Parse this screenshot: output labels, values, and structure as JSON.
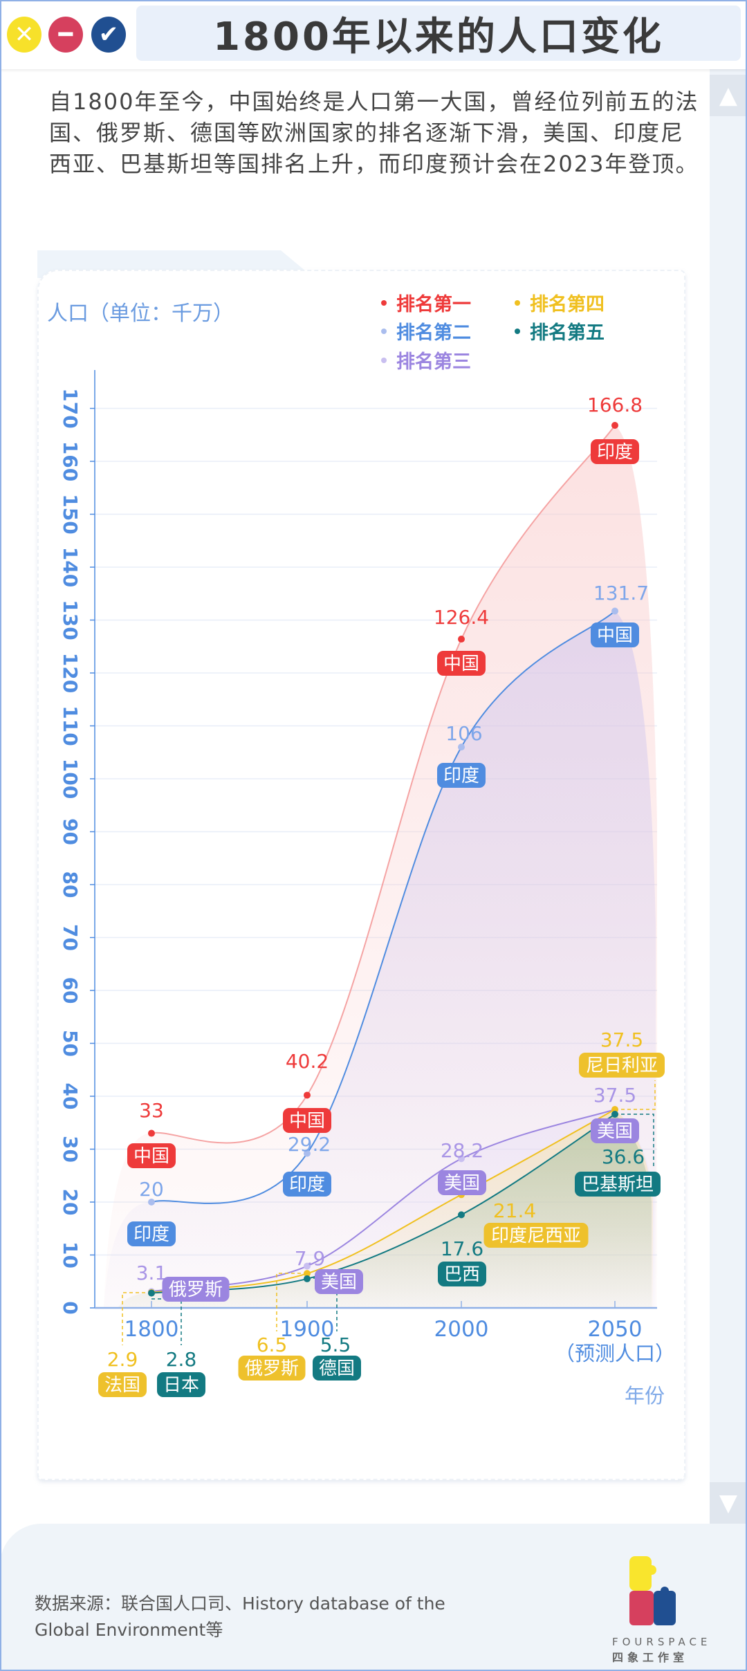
{
  "header": {
    "title": "1800年以来的人口变化",
    "buttons": [
      {
        "name": "close",
        "icon": "x-icon",
        "color": "#f7e12a"
      },
      {
        "name": "minimize",
        "icon": "minus-icon",
        "color": "#d6405e"
      },
      {
        "name": "confirm",
        "icon": "check-icon",
        "color": "#204f91"
      }
    ]
  },
  "description": "自1800年至今，中国始终是人口第一大国，曾经位列前五的法国、俄罗斯、德国等欧洲国家的排名逐渐下滑，美国、印度尼西亚、巴基斯坦等国排名上升，而印度预计会在2023年登顶。",
  "scroll": {
    "up_icon": "chevron-up-icon",
    "down_icon": "chevron-down-icon"
  },
  "chart_data": {
    "type": "line",
    "ylabel": "人口（单位：千万）",
    "xlabel": "年份",
    "categories": [
      "1800",
      "1900",
      "2000",
      "2050"
    ],
    "category_notes": [
      "",
      "",
      "",
      "（预测人口）"
    ],
    "ylim": [
      0,
      170
    ],
    "yticks": [
      0,
      10,
      20,
      30,
      40,
      50,
      60,
      70,
      80,
      90,
      100,
      110,
      120,
      130,
      140,
      150,
      160,
      170
    ],
    "grid": true,
    "legend_position": "top-right",
    "series": [
      {
        "name": "排名第一",
        "color": "#ee3a3a",
        "dot_color": "#ee3a3a",
        "values": [
          33,
          40.2,
          126.4,
          166.8
        ],
        "countries": [
          "中国",
          "中国",
          "中国",
          "印度"
        ]
      },
      {
        "name": "排名第二",
        "color": "#4f8ce0",
        "dot_color": "#aabdee",
        "values": [
          20,
          29.2,
          106,
          131.7
        ],
        "countries": [
          "印度",
          "印度",
          "印度",
          "中国"
        ]
      },
      {
        "name": "排名第三",
        "color": "#9b85e0",
        "dot_color": "#c9bff0",
        "values": [
          3.1,
          7.9,
          28.2,
          37.5
        ],
        "countries": [
          "俄罗斯",
          "美国",
          "美国",
          "美国"
        ]
      },
      {
        "name": "排名第四",
        "color": "#f0c020",
        "dot_color": "#f0c020",
        "values": [
          2.9,
          6.5,
          21.4,
          37.5
        ],
        "countries": [
          "法国",
          "俄罗斯",
          "印度尼西亚",
          "尼日利亚"
        ]
      },
      {
        "name": "排名第五",
        "color": "#137a82",
        "dot_color": "#137a82",
        "values": [
          2.8,
          5.5,
          17.6,
          36.6
        ],
        "countries": [
          "日本",
          "德国",
          "巴西",
          "巴基斯坦"
        ]
      }
    ]
  },
  "footer": {
    "source": "数据来源：联合国人口司、History database of the",
    "source_line2": "Global Environment等",
    "logo_en": "FOURSPACE",
    "logo_cn": "四象工作室"
  }
}
